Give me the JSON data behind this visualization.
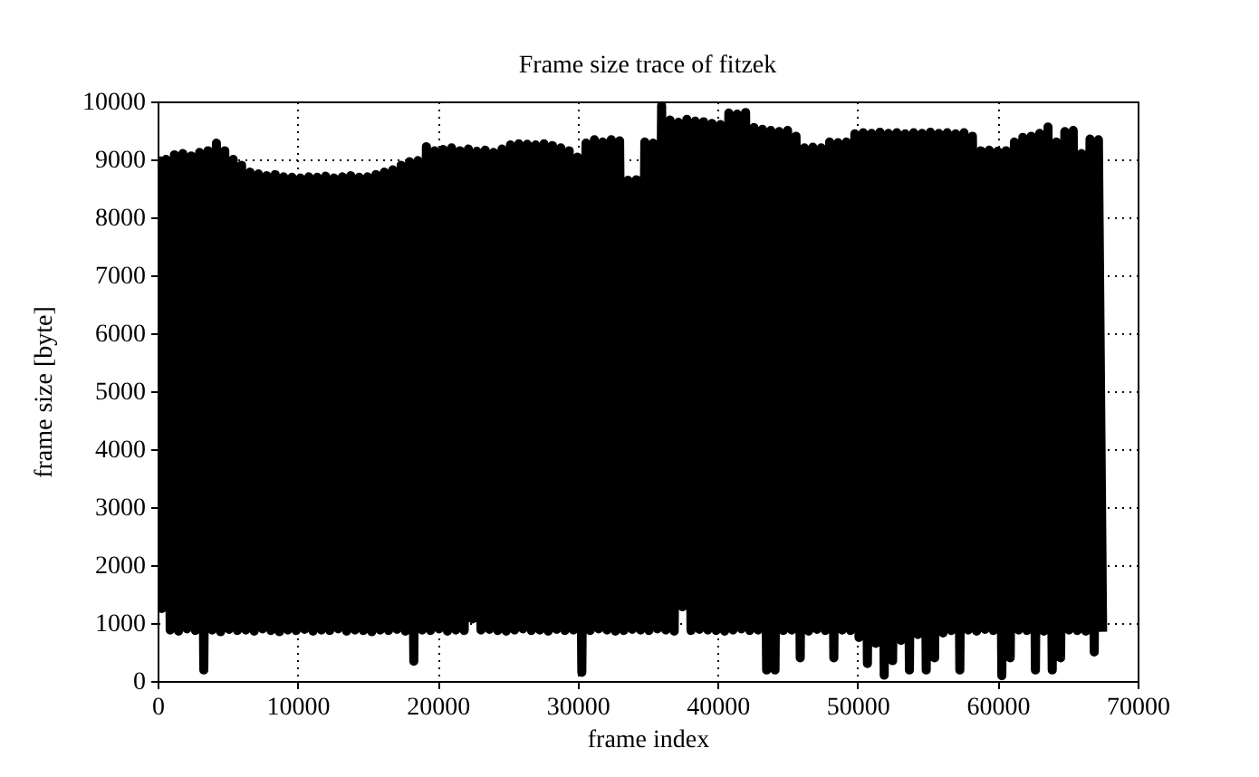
{
  "chart_data": {
    "type": "line",
    "title": "Frame size trace of fitzek",
    "xlabel": "frame index",
    "ylabel": "frame size [byte]",
    "x": [
      0,
      300,
      600,
      900,
      1200,
      1500,
      1800,
      2100,
      2400,
      2700,
      3000,
      3300,
      3600,
      3900,
      4200,
      4500,
      4800,
      5100,
      5400,
      5700,
      6000,
      6300,
      6600,
      6900,
      7200,
      7500,
      7800,
      8100,
      8400,
      8700,
      9000,
      9300,
      9600,
      9900,
      10200,
      10500,
      10800,
      11100,
      11400,
      11700,
      12000,
      12300,
      12600,
      12900,
      13200,
      13500,
      13800,
      14100,
      14400,
      14700,
      15000,
      15300,
      15600,
      15900,
      16200,
      16500,
      16800,
      17100,
      17400,
      17700,
      18000,
      18300,
      18600,
      18900,
      19200,
      19500,
      19800,
      20100,
      20400,
      20700,
      21000,
      21300,
      21600,
      21900,
      22200,
      22500,
      22800,
      23100,
      23400,
      23700,
      24000,
      24300,
      24600,
      24900,
      25200,
      25500,
      25800,
      26100,
      26400,
      26700,
      27000,
      27300,
      27600,
      27900,
      28200,
      28500,
      28800,
      29100,
      29400,
      29700,
      30000,
      30300,
      30600,
      30900,
      31200,
      31500,
      31800,
      32100,
      32400,
      32700,
      33000,
      33300,
      33600,
      33900,
      34200,
      34500,
      34800,
      35100,
      35400,
      35700,
      36000,
      36300,
      36600,
      36900,
      37200,
      37500,
      37800,
      38100,
      38400,
      38700,
      39000,
      39300,
      39600,
      39900,
      40200,
      40500,
      40800,
      41100,
      41400,
      41700,
      42000,
      42300,
      42600,
      42900,
      43200,
      43500,
      43800,
      44100,
      44400,
      44700,
      45000,
      45300,
      45600,
      45900,
      46200,
      46500,
      46800,
      47100,
      47400,
      47700,
      48000,
      48300,
      48600,
      48900,
      49200,
      49500,
      49800,
      50100,
      50400,
      50700,
      51000,
      51300,
      51600,
      51900,
      52200,
      52500,
      52800,
      53100,
      53400,
      53700,
      54000,
      54300,
      54600,
      54900,
      55200,
      55500,
      55800,
      56100,
      56400,
      56700,
      57000,
      57300,
      57600,
      57900,
      58200,
      58500,
      58800,
      59100,
      59400,
      59700,
      60000,
      60300,
      60600,
      60900,
      61200,
      61500,
      61800,
      62100,
      62400,
      62700,
      63000,
      63300,
      63600,
      63900,
      64200,
      64500,
      64800,
      65100,
      65400,
      65700,
      66000,
      66300,
      66600,
      66900,
      67200,
      67500
    ],
    "series": [
      {
        "color": "#000000",
        "values": [
          9050,
          1250,
          9000,
          880,
          9080,
          860,
          9100,
          900,
          9060,
          870,
          9120,
          190,
          9150,
          880,
          9280,
          850,
          9150,
          890,
          9000,
          870,
          8900,
          880,
          8780,
          860,
          8750,
          900,
          8720,
          870,
          8740,
          850,
          8700,
          880,
          8690,
          870,
          8680,
          890,
          8700,
          860,
          8690,
          880,
          8710,
          870,
          8680,
          900,
          8700,
          860,
          8720,
          880,
          8690,
          870,
          8700,
          850,
          8740,
          880,
          8780,
          870,
          8820,
          890,
          8900,
          860,
          8960,
          340,
          8980,
          880,
          9220,
          870,
          9150,
          900,
          9170,
          860,
          9200,
          880,
          9150,
          870,
          9180,
          1070,
          9140,
          880,
          9160,
          890,
          9120,
          870,
          9180,
          860,
          9250,
          880,
          9270,
          900,
          9260,
          870,
          9250,
          880,
          9270,
          860,
          9240,
          890,
          9200,
          870,
          9150,
          880,
          9040,
          150,
          9280,
          870,
          9340,
          900,
          9300,
          880,
          9340,
          860,
          9320,
          870,
          8640,
          890,
          8650,
          880,
          9300,
          870,
          9280,
          900,
          9930,
          880,
          9680,
          860,
          9640,
          1280,
          9690,
          870,
          9660,
          890,
          9650,
          880,
          9620,
          870,
          9600,
          860,
          9800,
          880,
          9780,
          900,
          9810,
          870,
          9550,
          880,
          9520,
          190,
          9500,
          190,
          9480,
          870,
          9500,
          880,
          9400,
          400,
          9200,
          860,
          9210,
          890,
          9200,
          870,
          9300,
          400,
          9290,
          880,
          9300,
          870,
          9440,
          750,
          9460,
          300,
          9450,
          650,
          9470,
          100,
          9450,
          350,
          9460,
          700,
          9440,
          190,
          9460,
          800,
          9450,
          190,
          9470,
          400,
          9450,
          830,
          9460,
          870,
          9440,
          190,
          9460,
          880,
          9400,
          860,
          9150,
          890,
          9160,
          870,
          9140,
          90,
          9150,
          400,
          9300,
          880,
          9380,
          870,
          9400,
          190,
          9450,
          860,
          9560,
          190,
          9300,
          400,
          9480,
          880,
          9500,
          870,
          9100,
          860,
          9350,
          500,
          9340,
          850
        ]
      }
    ],
    "xlim": [
      0,
      70000
    ],
    "xticks": [
      0,
      10000,
      20000,
      30000,
      40000,
      50000,
      60000,
      70000
    ],
    "ylim": [
      0,
      10000
    ],
    "yticks": [
      0,
      1000,
      2000,
      3000,
      4000,
      5000,
      6000,
      7000,
      8000,
      9000,
      10000
    ],
    "grid": true
  }
}
